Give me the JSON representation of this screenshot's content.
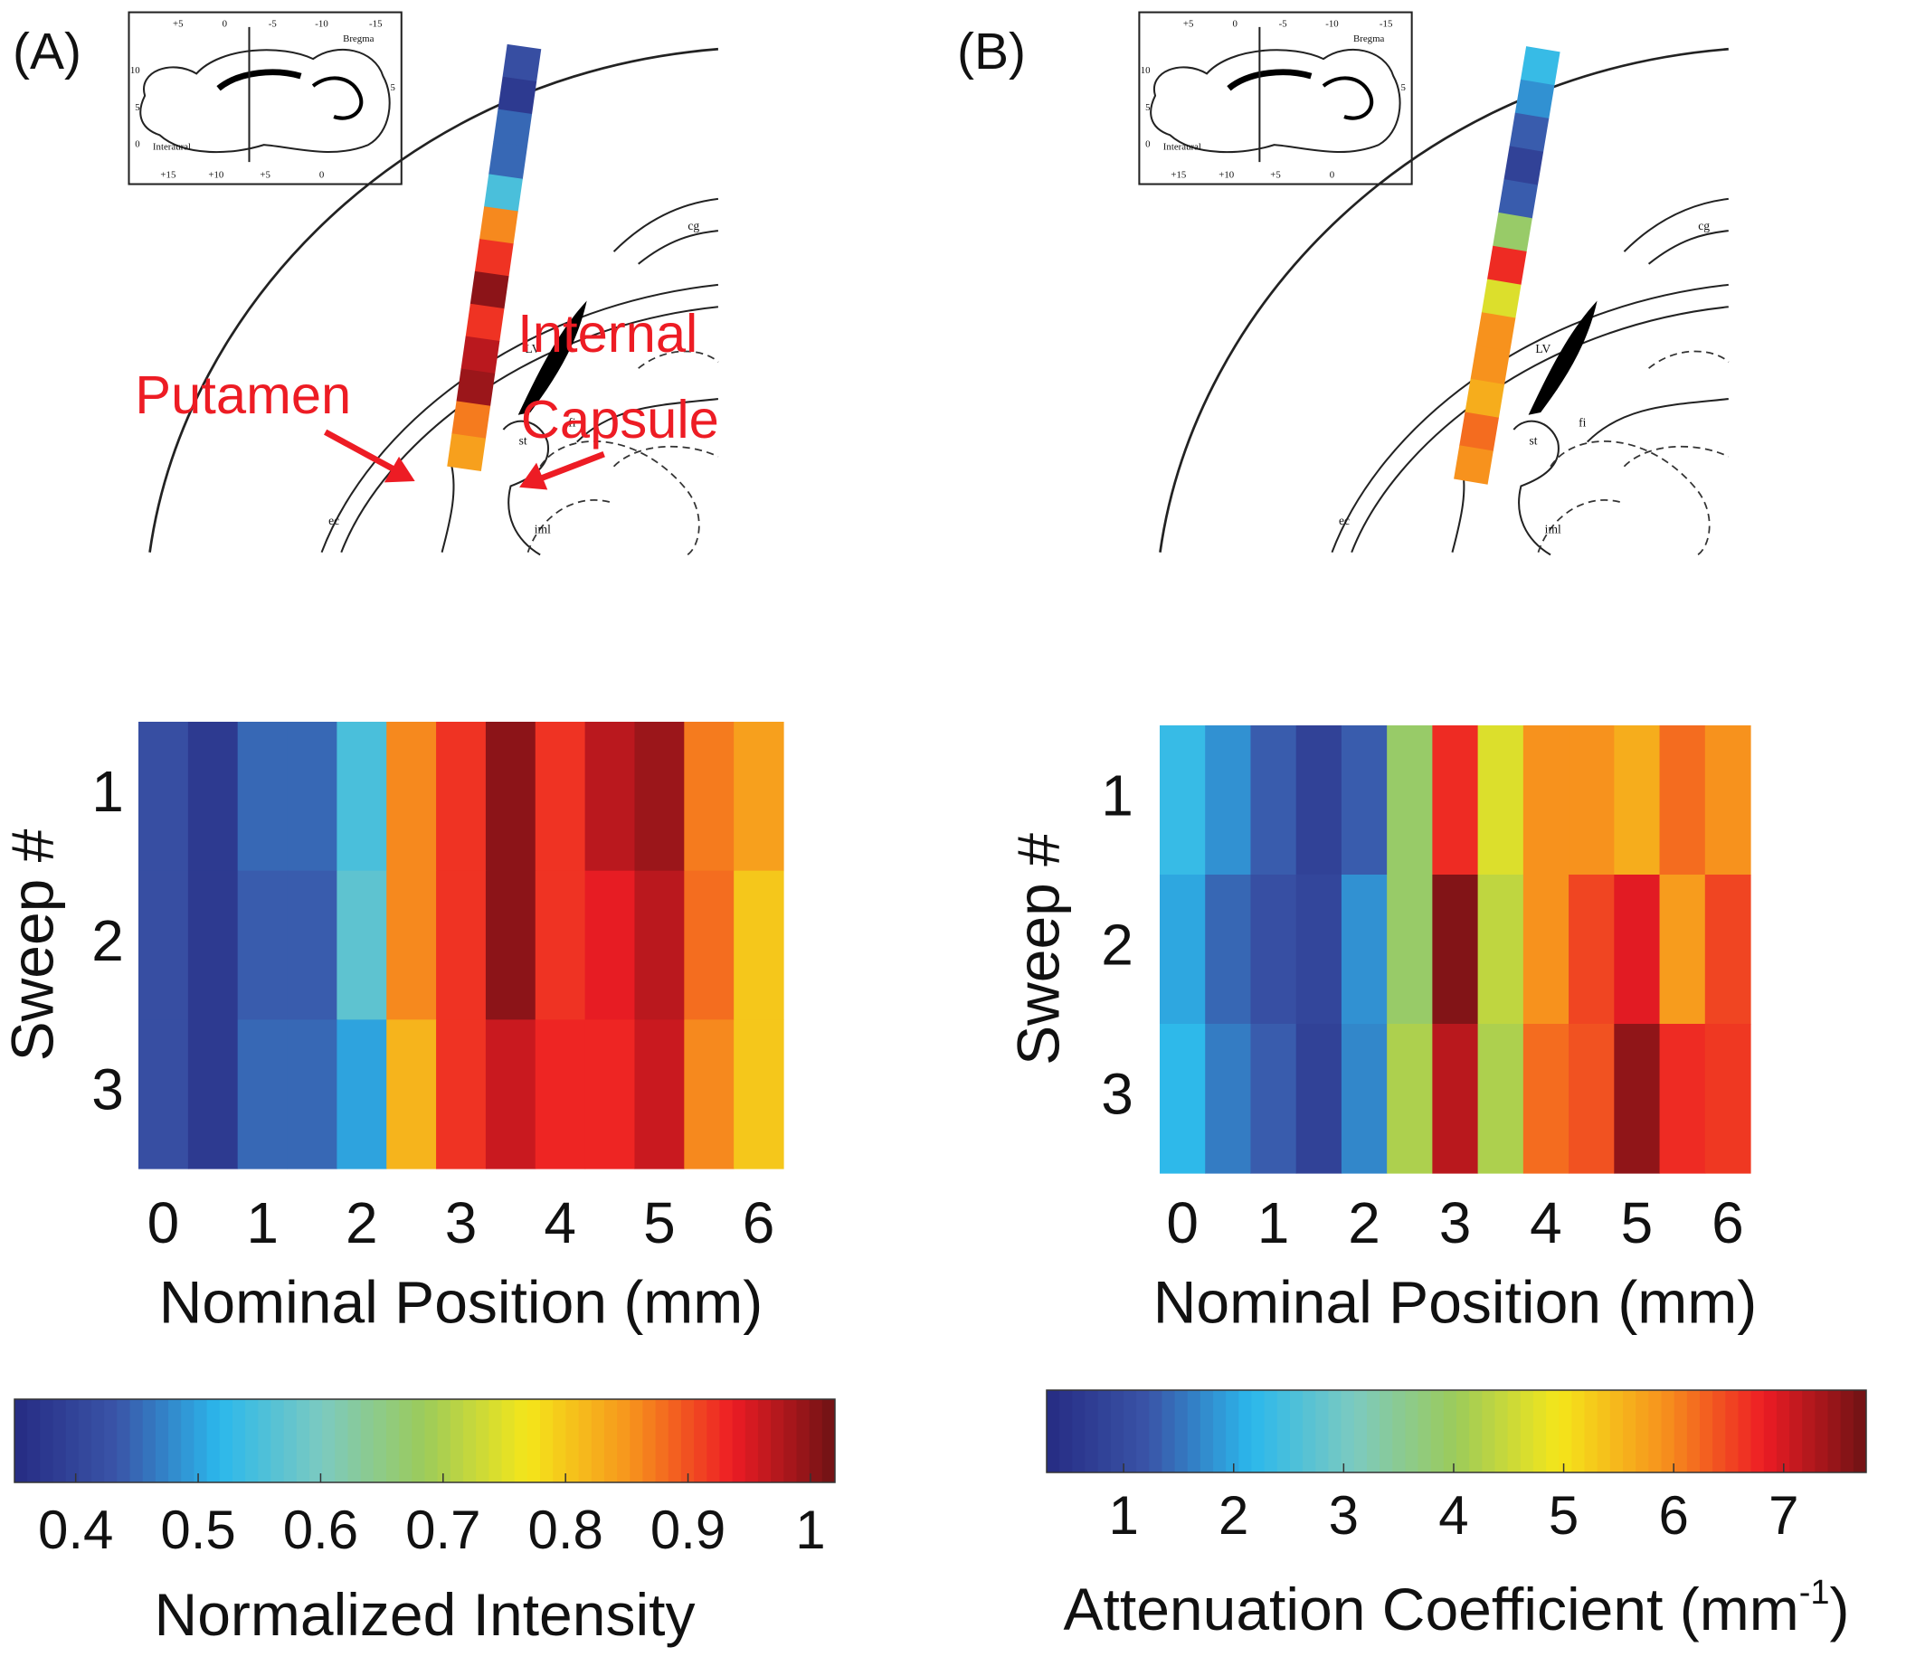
{
  "chart_data": [
    {
      "type": "heatmap",
      "panel_label": "(A)",
      "xlabel": "Nominal Position (mm)",
      "ylabel": "Sweep #",
      "x": [
        0,
        0.5,
        1,
        1.5,
        2,
        2.5,
        3,
        3.5,
        4,
        4.5,
        5,
        5.5,
        6
      ],
      "y": [
        1,
        2,
        3
      ],
      "xlim": [
        -0.25,
        6.25
      ],
      "xticks": [
        0,
        1,
        2,
        3,
        4,
        5,
        6
      ],
      "ylim": [
        0.5,
        3.5
      ],
      "yticks": [
        1,
        2,
        3
      ],
      "values": [
        [
          0.42,
          0.38,
          0.45,
          0.45,
          0.55,
          0.86,
          0.92,
          1.0,
          0.92,
          0.97,
          0.99,
          0.87,
          0.84
        ],
        [
          0.42,
          0.38,
          0.44,
          0.44,
          0.57,
          0.86,
          0.92,
          1.0,
          0.92,
          0.94,
          0.97,
          0.88,
          0.8
        ],
        [
          0.42,
          0.38,
          0.45,
          0.45,
          0.5,
          0.82,
          0.92,
          0.96,
          0.93,
          0.93,
          0.96,
          0.86,
          0.8
        ]
      ],
      "colormap": [
        "#262b83",
        "#3a55a8",
        "#2bb8ec",
        "#7ccac0",
        "#9ccb5a",
        "#f4e61a",
        "#f7941d",
        "#ed1c24",
        "#6e1214"
      ],
      "clim": [
        0.35,
        1.02
      ],
      "colorbar_ticks": [
        0.4,
        0.5,
        0.6,
        0.7,
        0.8,
        0.9,
        1
      ],
      "colorbar_label": [
        "Normalized Intensity"
      ],
      "annotations": [
        "Putamen",
        "Internal",
        "Capsule"
      ]
    },
    {
      "type": "heatmap",
      "panel_label": "(B)",
      "xlabel": "Nominal Position (mm)",
      "ylabel": "Sweep #",
      "x": [
        0,
        0.5,
        1,
        1.5,
        2,
        2.5,
        3,
        3.5,
        4,
        4.5,
        5,
        5.5,
        6
      ],
      "y": [
        1,
        2,
        3
      ],
      "xlim": [
        -0.25,
        6.25
      ],
      "xticks": [
        0,
        1,
        2,
        3,
        4,
        5,
        6
      ],
      "ylim": [
        0.5,
        3.5
      ],
      "yticks": [
        1,
        2,
        3
      ],
      "values": [
        [
          2.3,
          1.8,
          1.3,
          0.8,
          1.3,
          3.9,
          6.7,
          4.7,
          5.9,
          5.9,
          5.6,
          6.2,
          5.9
        ],
        [
          2.0,
          1.4,
          1.1,
          0.9,
          1.8,
          3.9,
          7.6,
          4.4,
          5.9,
          6.5,
          6.9,
          5.8,
          6.5
        ],
        [
          2.2,
          1.6,
          1.3,
          0.8,
          1.7,
          4.2,
          7.2,
          4.2,
          6.2,
          6.4,
          7.5,
          6.7,
          6.6
        ]
      ],
      "colormap": [
        "#262b83",
        "#3a55a8",
        "#2bb8ec",
        "#7ccac0",
        "#9ccb5a",
        "#f4e61a",
        "#f7941d",
        "#ed1c24",
        "#6e1214"
      ],
      "clim": [
        0.3,
        7.75
      ],
      "colorbar_ticks": [
        1,
        2,
        3,
        4,
        5,
        6,
        7
      ],
      "colorbar_label": [
        "Attenuation Coefficient (mm",
        "-1",
        ")"
      ],
      "annotations": []
    }
  ],
  "atlas_labels": [
    "+5",
    "0",
    "-5",
    "-10",
    "-15",
    "Bregma",
    "10",
    "5",
    "0",
    "Interaural",
    "+15",
    "+10",
    "+5",
    "0",
    "5",
    "cg",
    "LV",
    "fi",
    "st",
    "ec",
    "iml"
  ]
}
